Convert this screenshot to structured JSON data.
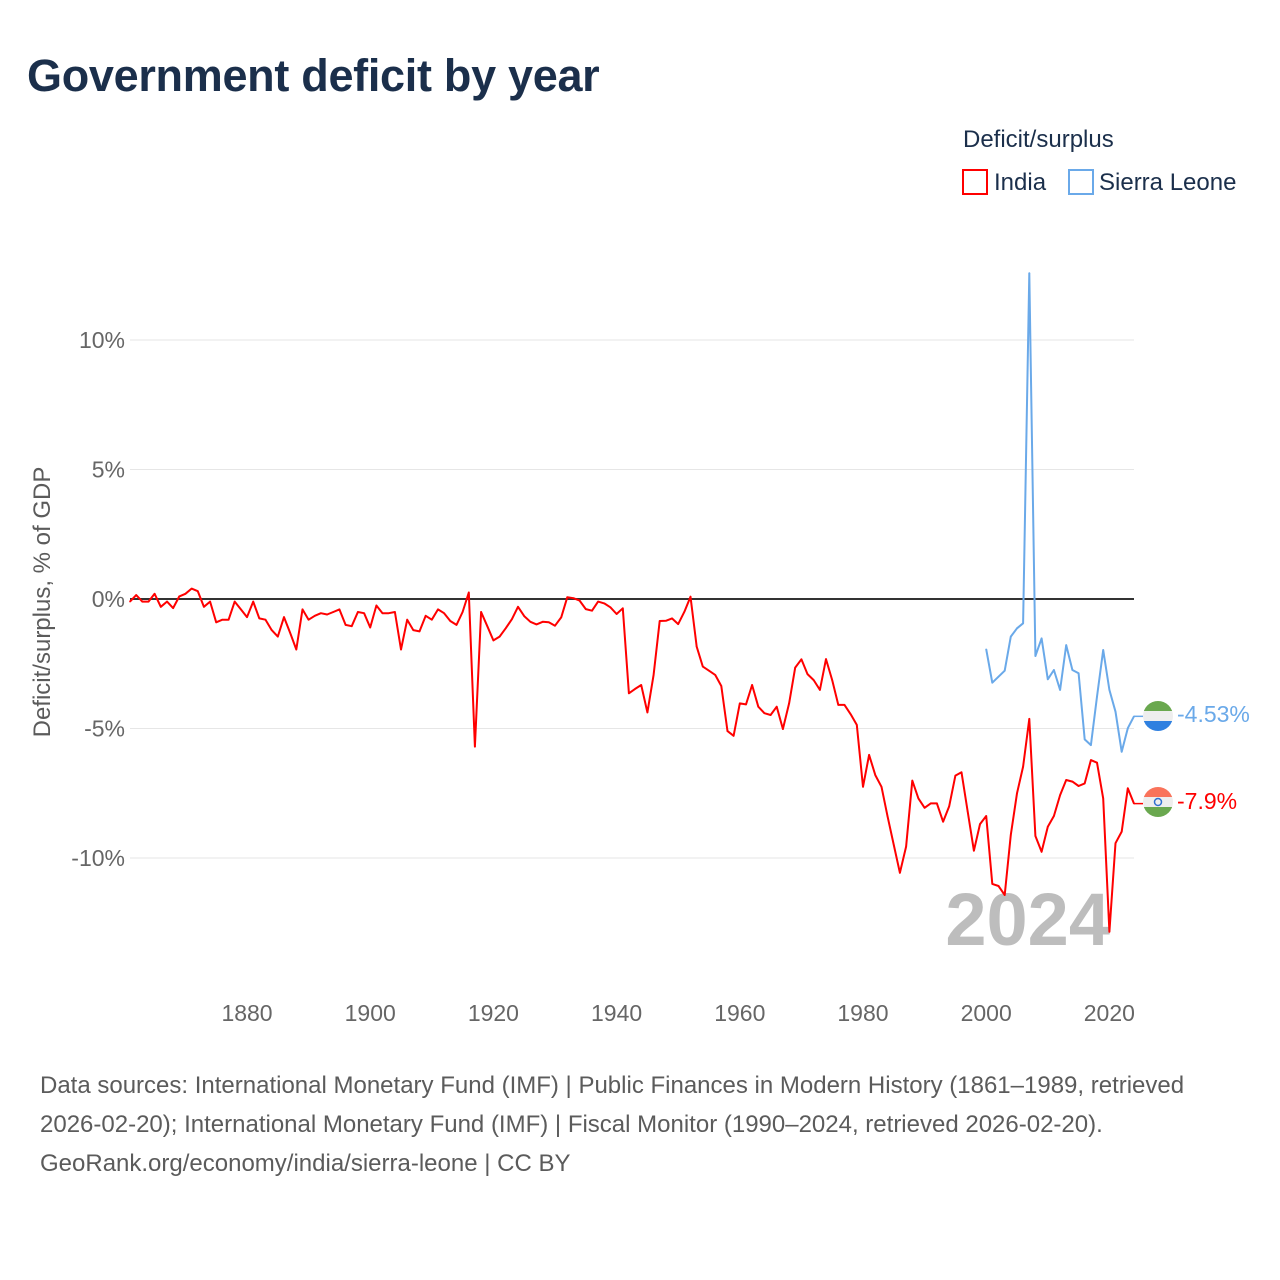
{
  "title": "Government deficit by year",
  "legend": {
    "title": "Deficit/surplus",
    "items": [
      {
        "label": "India",
        "color": "#ff0000"
      },
      {
        "label": "Sierra Leone",
        "color": "#6aa9e9"
      }
    ]
  },
  "current_year": "2024",
  "end_labels": {
    "india": "-7.9%",
    "sierra_leone": "-4.53%"
  },
  "footer": {
    "sources": "Data sources: International Monetary Fund (IMF) | Public Finances in Modern History (1861–1989, retrieved 2026-02-20); International Monetary Fund (IMF) | Fiscal Monitor (1990–2024, retrieved 2026-02-20).",
    "credit": "GeoRank.org/economy/india/sierra-leone | CC BY"
  },
  "chart_data": {
    "type": "line",
    "title": "Government deficit by year",
    "xlabel": "",
    "ylabel": "Deficit/surplus, % of GDP",
    "xlim": [
      1861,
      2024
    ],
    "ylim": [
      -13.5,
      13
    ],
    "x_ticks": [
      1880,
      1900,
      1920,
      1940,
      1960,
      1980,
      2000,
      2020
    ],
    "x_tick_labels": [
      "1880",
      "1900",
      "1920",
      "1940",
      "1960",
      "1980",
      "2000",
      "2020"
    ],
    "y_ticks": [
      10,
      5,
      0,
      -5,
      -10
    ],
    "y_tick_labels": [
      "10%",
      "5%",
      "0%",
      "-5%",
      "-10%"
    ],
    "grid": true,
    "legend_position": "top-right",
    "series": [
      {
        "name": "India",
        "color": "#ff0000",
        "start_year": 1861,
        "values": [
          -0.1,
          0.15,
          -0.1,
          -0.1,
          0.2,
          -0.3,
          -0.1,
          -0.35,
          0.1,
          0.2,
          0.4,
          0.3,
          -0.3,
          -0.1,
          -0.9,
          -0.8,
          -0.8,
          -0.1,
          -0.4,
          -0.7,
          -0.1,
          -0.75,
          -0.8,
          -1.2,
          -1.45,
          -0.7,
          -1.3,
          -1.95,
          -0.4,
          -0.8,
          -0.65,
          -0.55,
          -0.6,
          -0.5,
          -0.4,
          -1.0,
          -1.05,
          -0.5,
          -0.55,
          -1.1,
          -0.25,
          -0.55,
          -0.55,
          -0.5,
          -1.95,
          -0.8,
          -1.2,
          -1.25,
          -0.65,
          -0.8,
          -0.4,
          -0.55,
          -0.85,
          -1.0,
          -0.5,
          0.25,
          -5.7,
          -0.5,
          -1.05,
          -1.6,
          -1.45,
          -1.13,
          -0.78,
          -0.3,
          -0.66,
          -0.88,
          -0.98,
          -0.88,
          -0.9,
          -1.03,
          -0.71,
          0.07,
          0.03,
          -0.06,
          -0.39,
          -0.45,
          -0.1,
          -0.17,
          -0.32,
          -0.58,
          -0.36,
          -3.64,
          -3.47,
          -3.32,
          -4.38,
          -2.93,
          -0.85,
          -0.84,
          -0.75,
          -0.97,
          -0.49,
          0.09,
          -1.84,
          -2.61,
          -2.77,
          -2.93,
          -3.36,
          -5.1,
          -5.28,
          -4.03,
          -4.07,
          -3.32,
          -4.16,
          -4.41,
          -4.48,
          -4.16,
          -5.02,
          -4.03,
          -2.65,
          -2.33,
          -2.9,
          -3.13,
          -3.51,
          -2.32,
          -3.13,
          -4.09,
          -4.09,
          -4.45,
          -4.86,
          -7.25,
          -6.02,
          -6.8,
          -7.25,
          -8.4,
          -9.5,
          -10.57,
          -9.56,
          -7.01,
          -7.7,
          -8.06,
          -7.89,
          -7.89,
          -8.6,
          -8.0,
          -6.82,
          -6.69,
          -8.21,
          -9.72,
          -8.69,
          -8.38,
          -11.0,
          -11.08,
          -11.43,
          -9.11,
          -7.5,
          -6.47,
          -4.63,
          -9.15,
          -9.76,
          -8.79,
          -8.38,
          -7.57,
          -6.99,
          -7.05,
          -7.22,
          -7.12,
          -6.22,
          -6.32,
          -7.7,
          -12.85,
          -9.43,
          -8.98,
          -7.31,
          -7.9
        ]
      },
      {
        "name": "Sierra Leone",
        "color": "#6aa9e9",
        "start_year": 2000,
        "values": [
          -1.94,
          -3.23,
          -3.0,
          -2.77,
          -1.45,
          -1.13,
          -0.94,
          12.58,
          -2.2,
          -1.52,
          -3.1,
          -2.74,
          -3.51,
          -1.78,
          -2.74,
          -2.87,
          -5.42,
          -5.64,
          -3.77,
          -1.97,
          -3.51,
          -4.35,
          -5.9,
          -4.99,
          -4.53
        ]
      }
    ]
  }
}
